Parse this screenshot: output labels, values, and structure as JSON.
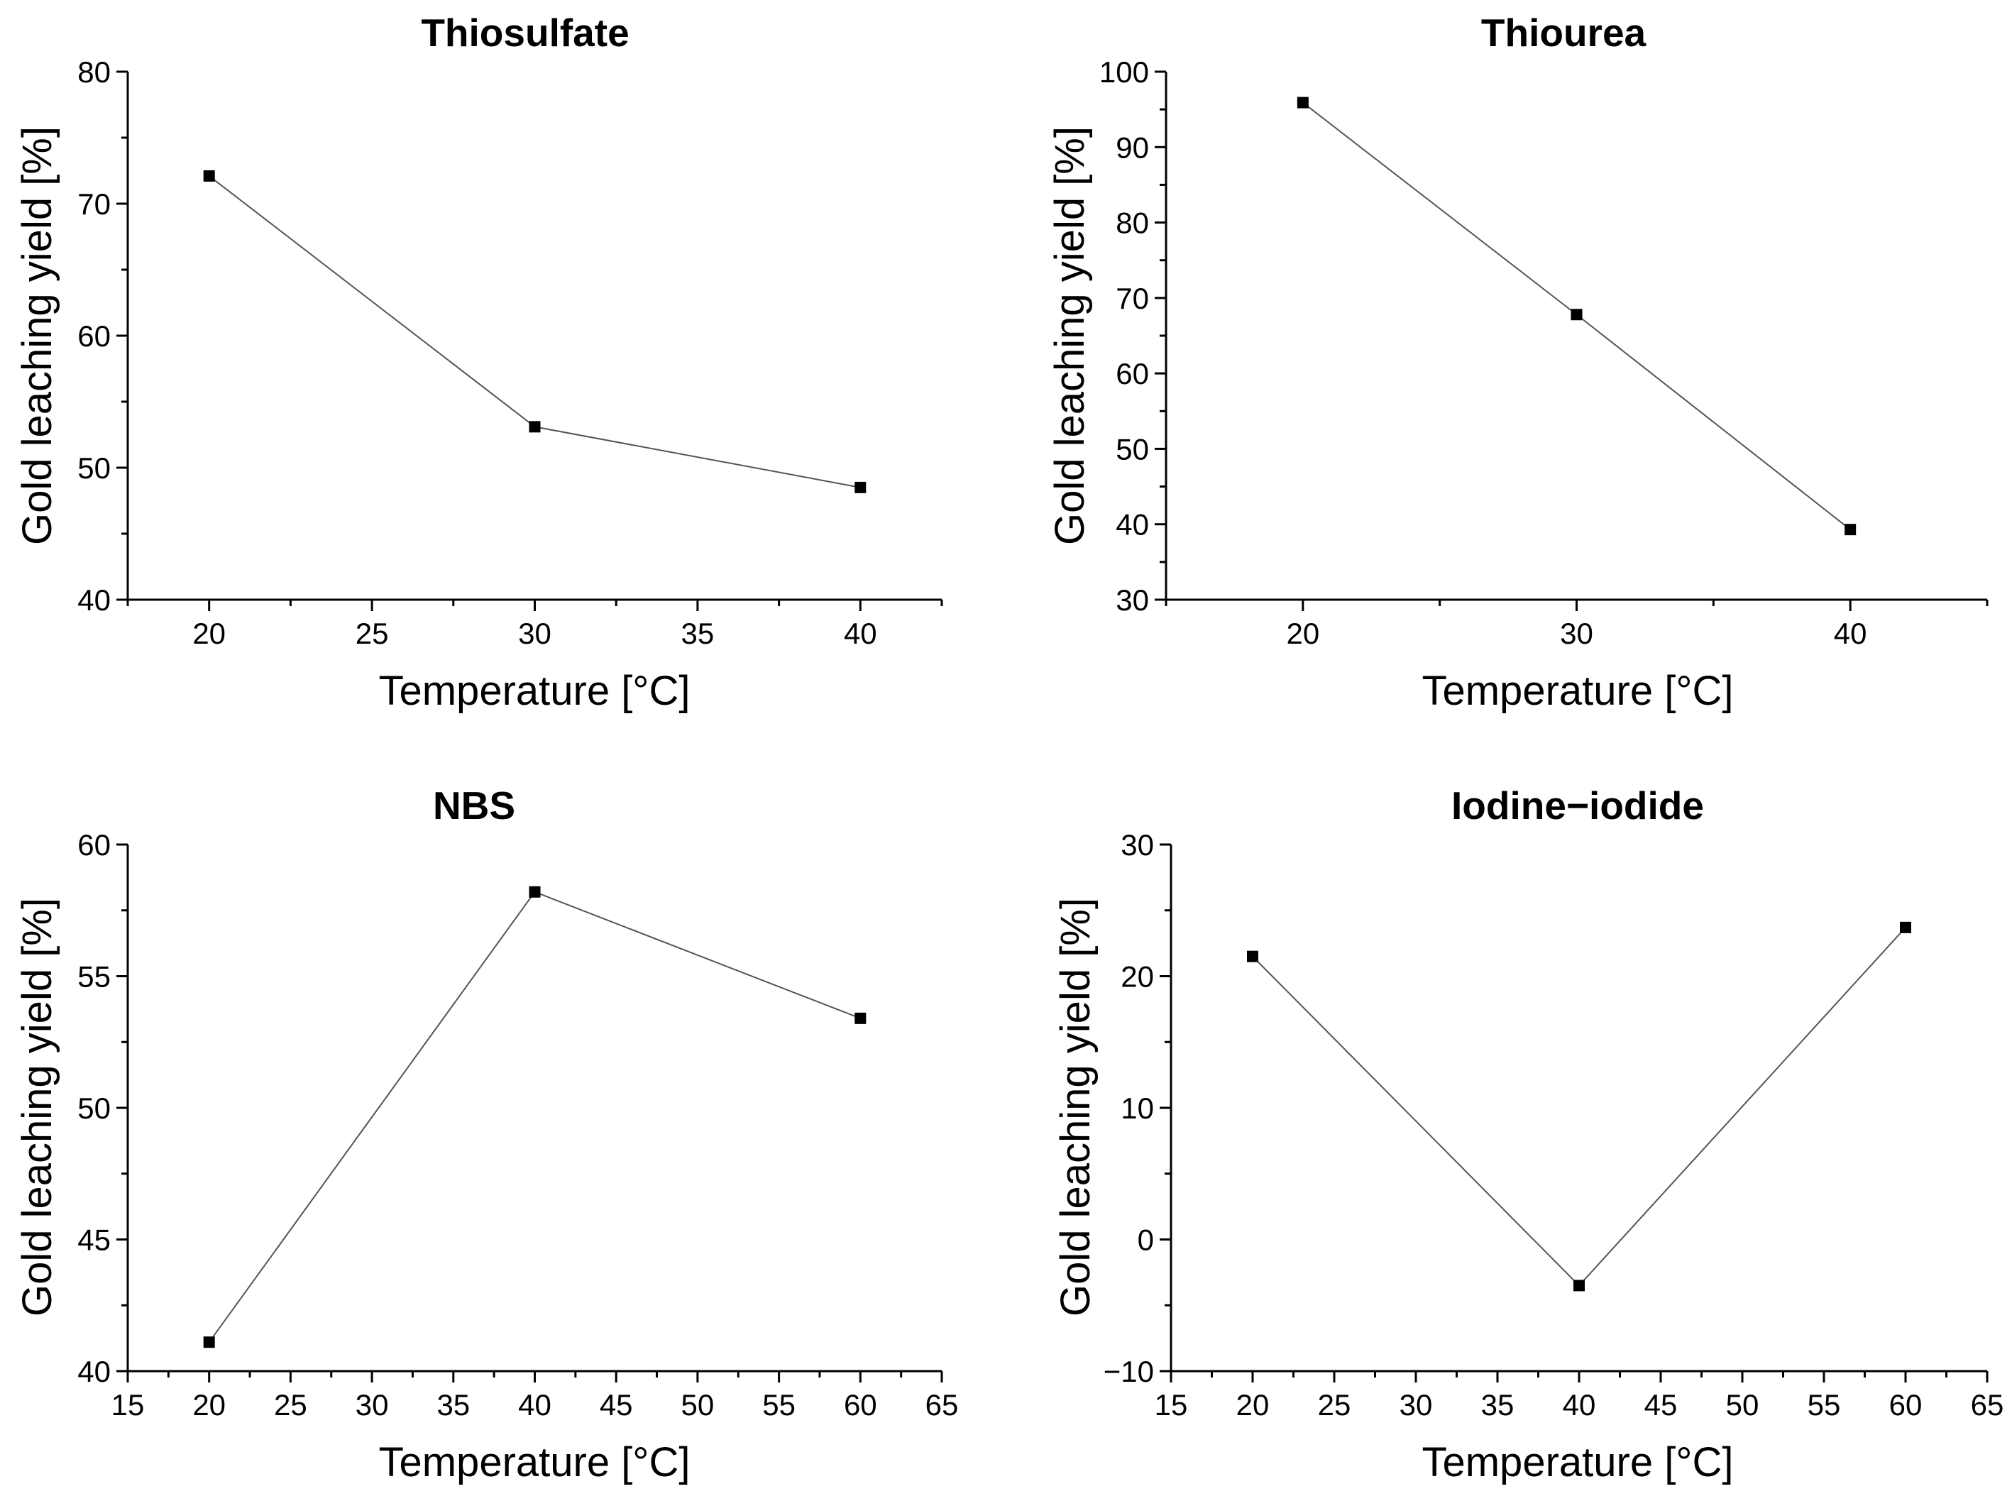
{
  "chart_data": [
    {
      "type": "line",
      "title": "Thiosulfate",
      "xlabel": "Temperature [°C]",
      "ylabel": "Gold leaching yield [%]",
      "xlim": [
        17.5,
        42.5
      ],
      "ylim": [
        40,
        80
      ],
      "xticks": [
        20,
        25,
        30,
        35,
        40
      ],
      "yticks": [
        40,
        50,
        60,
        70,
        80
      ],
      "series": [
        {
          "name": "Thiosulfate",
          "x": [
            20,
            30,
            40
          ],
          "y": [
            72.1,
            53.1,
            48.5
          ]
        }
      ]
    },
    {
      "type": "line",
      "title": "Thiourea",
      "xlabel": "Temperature [°C]",
      "ylabel": "Gold leaching yield [%]",
      "xlim": [
        15,
        45
      ],
      "ylim": [
        30,
        100
      ],
      "xticks": [
        20,
        30,
        40
      ],
      "yticks": [
        30,
        40,
        50,
        60,
        70,
        80,
        90,
        100
      ],
      "series": [
        {
          "name": "Thiourea",
          "x": [
            20,
            30,
            40
          ],
          "y": [
            95.9,
            67.8,
            39.3
          ]
        }
      ]
    },
    {
      "type": "line",
      "title": "NBS",
      "xlabel": "Temperature [°C]",
      "ylabel": "Gold leaching yield [%]",
      "xlim": [
        15,
        65
      ],
      "ylim": [
        40,
        60
      ],
      "xticks": [
        15,
        20,
        25,
        30,
        35,
        40,
        45,
        50,
        55,
        60,
        65
      ],
      "yticks": [
        40,
        45,
        50,
        55,
        60
      ],
      "series": [
        {
          "name": "NBS",
          "x": [
            20,
            40,
            60
          ],
          "y": [
            41.1,
            58.2,
            53.4
          ]
        }
      ]
    },
    {
      "type": "line",
      "title": "Iodine−iodide",
      "xlabel": "Temperature [°C]",
      "ylabel": "Gold leaching yield [%]",
      "xlim": [
        15,
        65
      ],
      "ylim": [
        -10,
        30
      ],
      "xticks": [
        15,
        20,
        25,
        30,
        35,
        40,
        45,
        50,
        55,
        60,
        65
      ],
      "yticks": [
        -10,
        0,
        10,
        20,
        30
      ],
      "series": [
        {
          "name": "Iodine−iodide",
          "x": [
            20,
            40,
            60
          ],
          "y": [
            21.5,
            -3.5,
            23.7
          ]
        }
      ]
    }
  ]
}
